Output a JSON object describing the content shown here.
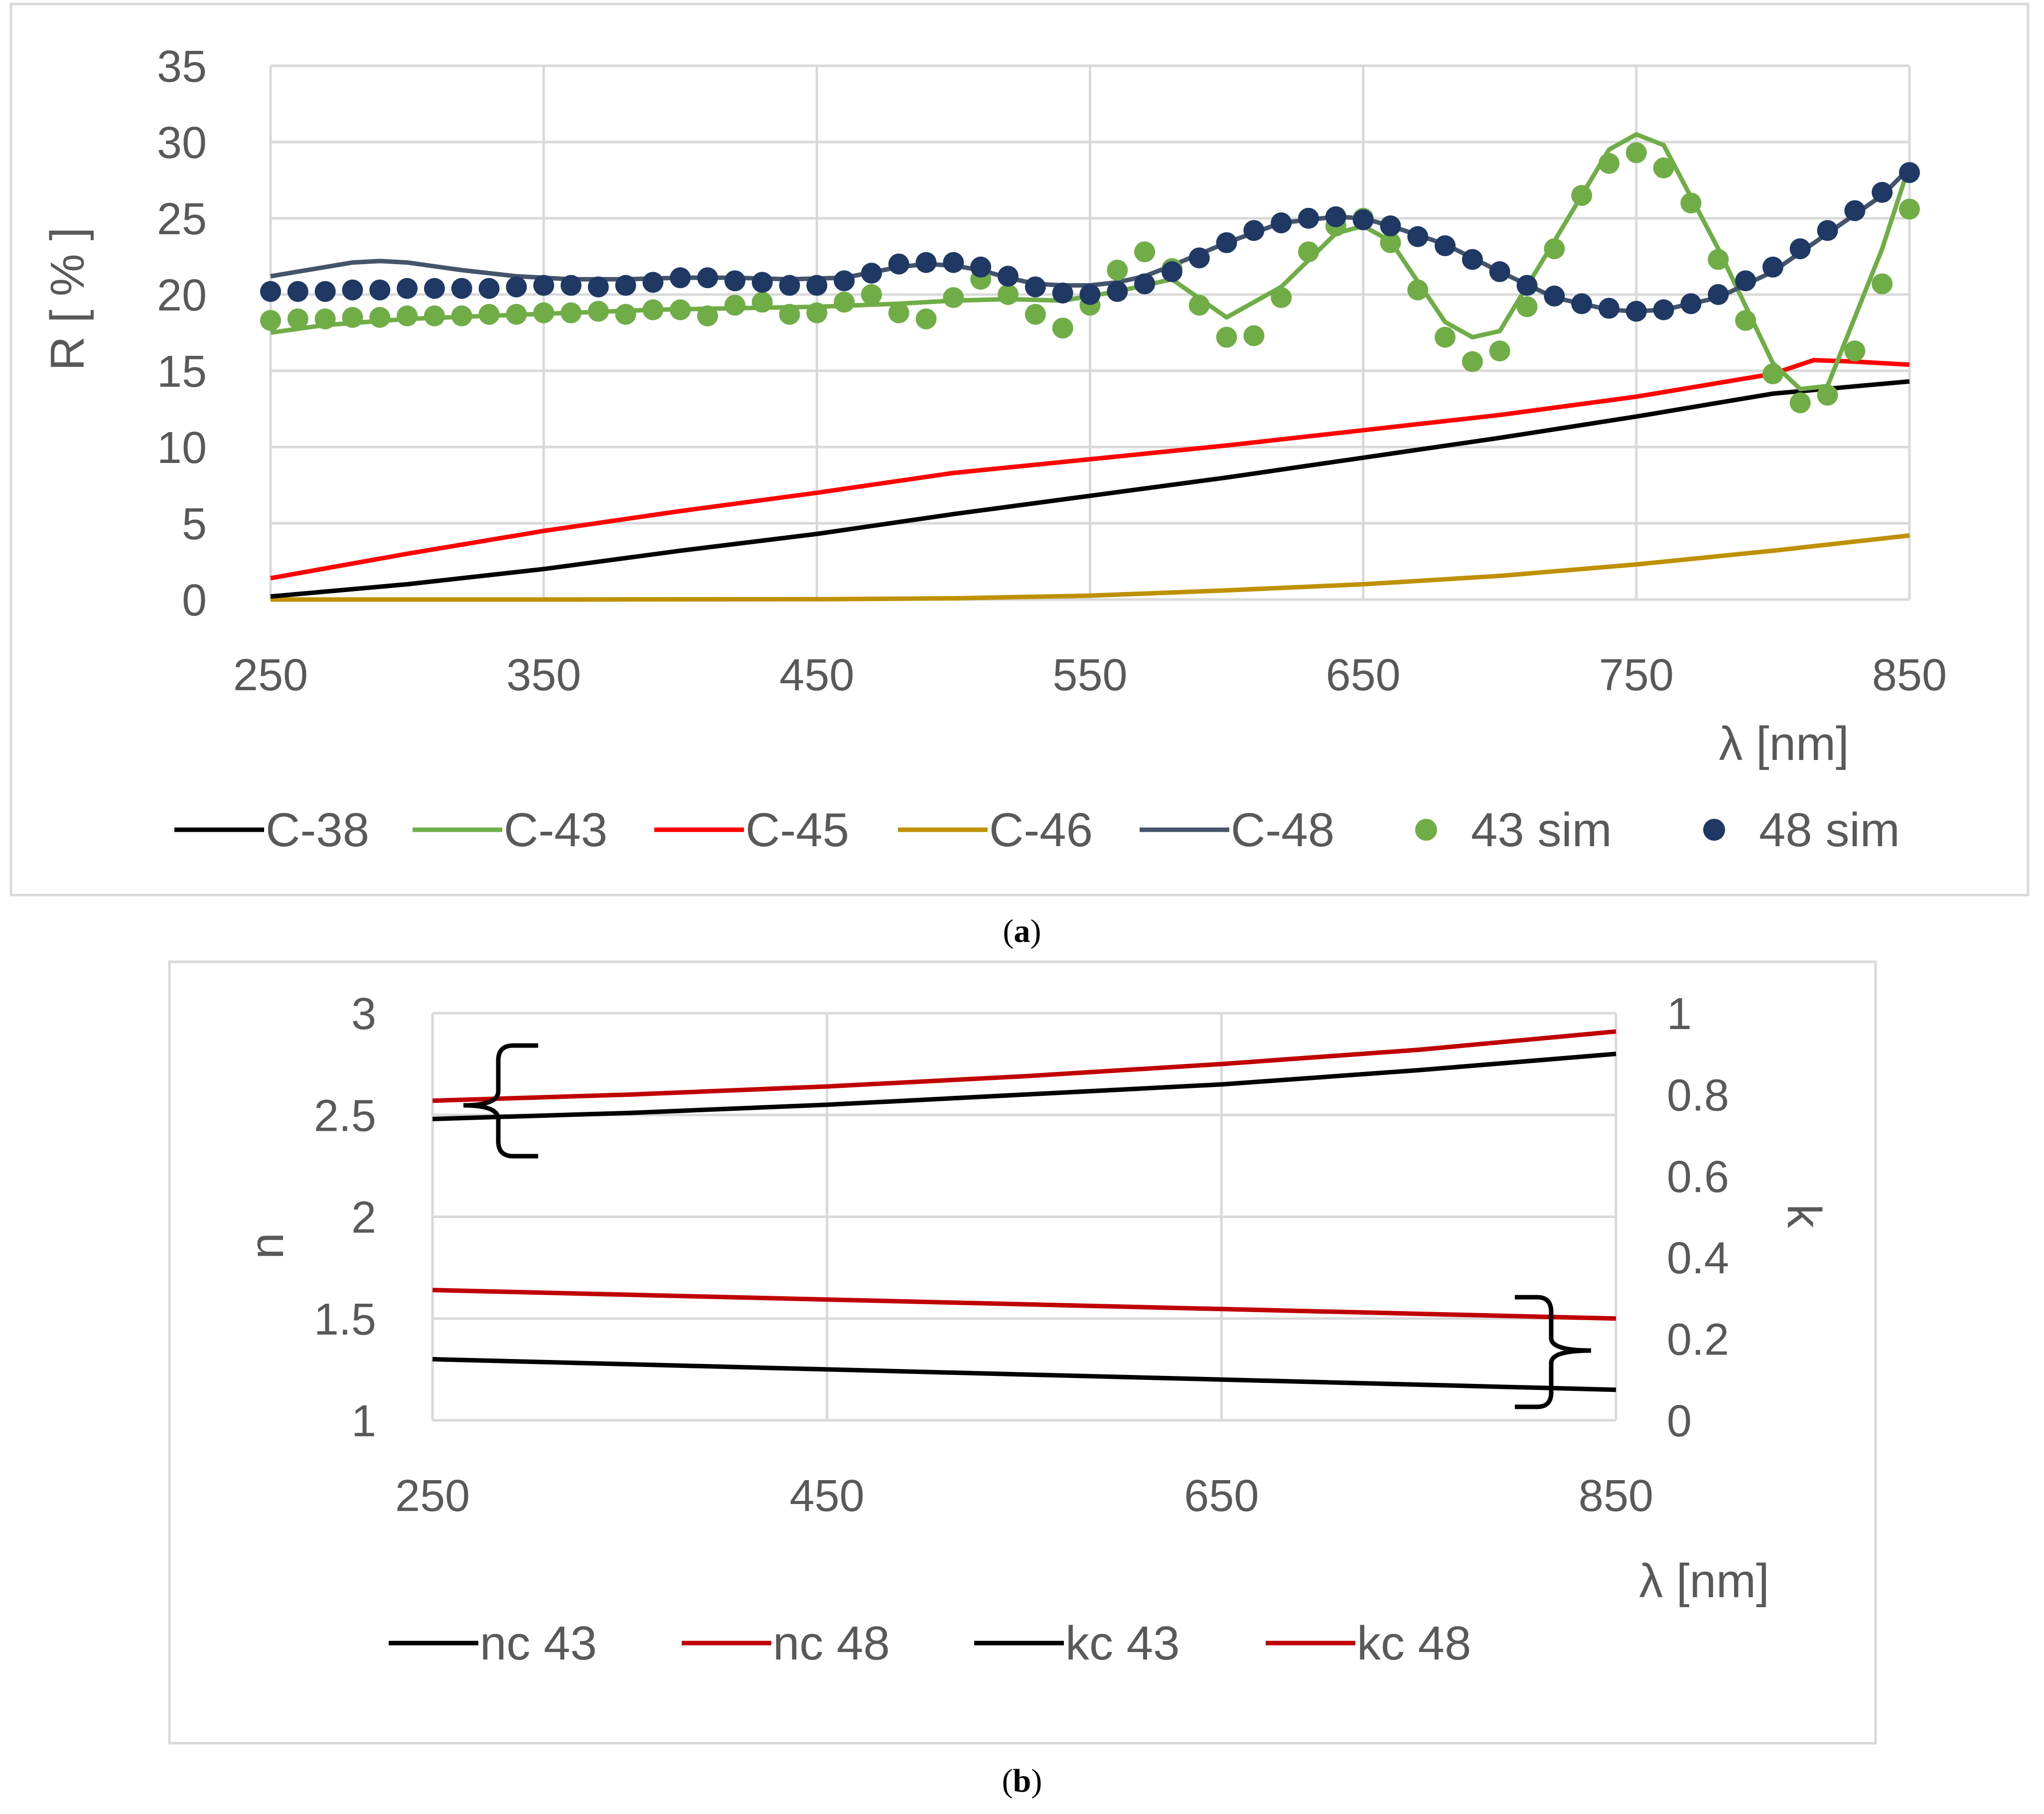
{
  "chart_data": [
    {
      "panel": "a",
      "type": "line",
      "caption": {
        "open": "(",
        "letter": "a",
        "close": ")"
      },
      "xlabel": "λ [nm]",
      "ylabel": "R [ % ]",
      "xlim": [
        250,
        850
      ],
      "ylim": [
        0,
        35
      ],
      "xticks": [
        "250",
        "350",
        "450",
        "550",
        "650",
        "750",
        "850"
      ],
      "yticks": [
        "0",
        "5",
        "10",
        "15",
        "20",
        "25",
        "30",
        "35"
      ],
      "grid": true,
      "legend_position": "bottom",
      "series": [
        {
          "name": "C-38",
          "kind": "line",
          "color": "#000000",
          "x": [
            250,
            300,
            350,
            400,
            450,
            500,
            550,
            600,
            650,
            700,
            750,
            800,
            850
          ],
          "y": [
            0.2,
            1.0,
            2.0,
            3.2,
            4.3,
            5.6,
            6.8,
            8.0,
            9.3,
            10.6,
            12.0,
            13.5,
            14.3
          ]
        },
        {
          "name": "C-43",
          "kind": "line",
          "color": "#70AD47",
          "x": [
            250,
            270,
            300,
            330,
            360,
            390,
            420,
            450,
            480,
            500,
            520,
            540,
            560,
            580,
            600,
            620,
            640,
            650,
            660,
            680,
            690,
            700,
            720,
            740,
            750,
            760,
            780,
            800,
            810,
            820,
            840,
            850
          ],
          "y": [
            17.5,
            18.0,
            18.4,
            18.6,
            18.8,
            19.0,
            19.1,
            19.2,
            19.4,
            19.6,
            19.7,
            19.6,
            20.2,
            21.0,
            18.5,
            20.5,
            24.0,
            24.5,
            23.5,
            18.2,
            17.2,
            17.6,
            23.5,
            29.5,
            30.5,
            29.8,
            23.0,
            15.5,
            13.8,
            14.0,
            23.0,
            28.5
          ]
        },
        {
          "name": "C-45",
          "kind": "line",
          "color": "#FF0000",
          "x": [
            250,
            300,
            350,
            400,
            450,
            500,
            550,
            600,
            650,
            700,
            750,
            800,
            815,
            830,
            850
          ],
          "y": [
            1.4,
            3.0,
            4.5,
            5.8,
            7.0,
            8.3,
            9.2,
            10.1,
            11.1,
            12.1,
            13.3,
            14.8,
            15.7,
            15.6,
            15.4
          ]
        },
        {
          "name": "C-46",
          "kind": "line",
          "color": "#BF9000",
          "x": [
            250,
            350,
            450,
            500,
            550,
            600,
            650,
            700,
            750,
            800,
            850
          ],
          "y": [
            0,
            0,
            0.02,
            0.08,
            0.25,
            0.6,
            1.0,
            1.55,
            2.3,
            3.2,
            4.2
          ]
        },
        {
          "name": "C-48",
          "kind": "line",
          "color": "#44546A",
          "x": [
            250,
            260,
            270,
            280,
            290,
            300,
            320,
            340,
            360,
            380,
            400,
            420,
            440,
            460,
            480,
            490,
            500,
            510,
            520,
            530,
            540,
            550,
            560,
            570,
            580,
            600,
            620,
            640,
            650,
            660,
            680,
            700,
            720,
            740,
            750,
            760,
            780,
            800,
            820,
            840,
            850
          ],
          "y": [
            21.2,
            21.5,
            21.8,
            22.1,
            22.2,
            22.1,
            21.6,
            21.2,
            21.0,
            21.0,
            21.1,
            21.1,
            21.0,
            21.1,
            21.8,
            22.0,
            21.9,
            21.6,
            21.1,
            20.7,
            20.6,
            20.6,
            20.8,
            21.2,
            21.9,
            23.4,
            24.7,
            25.1,
            25.0,
            24.5,
            23.3,
            21.5,
            19.8,
            19.0,
            18.9,
            19.0,
            19.8,
            21.5,
            24.0,
            26.5,
            28.3
          ]
        },
        {
          "name": "43 sim",
          "kind": "scatter",
          "color": "#70AD47",
          "x": [
            250,
            260,
            270,
            280,
            290,
            300,
            310,
            320,
            330,
            340,
            350,
            360,
            370,
            380,
            390,
            400,
            410,
            420,
            430,
            440,
            450,
            460,
            470,
            480,
            490,
            500,
            510,
            520,
            530,
            540,
            550,
            560,
            570,
            580,
            590,
            600,
            610,
            620,
            630,
            640,
            650,
            660,
            670,
            680,
            690,
            700,
            710,
            720,
            730,
            740,
            750,
            760,
            770,
            780,
            790,
            800,
            810,
            820,
            830,
            840,
            850
          ],
          "y": [
            18.3,
            18.4,
            18.4,
            18.5,
            18.5,
            18.6,
            18.6,
            18.6,
            18.7,
            18.7,
            18.8,
            18.8,
            18.9,
            18.7,
            19.0,
            19.0,
            18.6,
            19.3,
            19.5,
            18.7,
            18.8,
            19.5,
            20.0,
            18.8,
            18.4,
            19.8,
            21.0,
            20.0,
            18.7,
            17.8,
            19.3,
            21.6,
            22.8,
            21.7,
            19.3,
            17.2,
            17.3,
            19.8,
            22.8,
            24.5,
            25.0,
            23.4,
            20.3,
            17.2,
            15.6,
            16.3,
            19.2,
            23.0,
            26.5,
            28.6,
            29.3,
            28.3,
            26.0,
            22.3,
            18.3,
            14.8,
            12.9,
            13.4,
            16.3,
            20.7,
            25.6
          ]
        },
        {
          "name": "48 sim",
          "kind": "scatter",
          "color": "#1F3864",
          "x": [
            250,
            260,
            270,
            280,
            290,
            300,
            310,
            320,
            330,
            340,
            350,
            360,
            370,
            380,
            390,
            400,
            410,
            420,
            430,
            440,
            450,
            460,
            470,
            480,
            490,
            500,
            510,
            520,
            530,
            540,
            550,
            560,
            570,
            580,
            590,
            600,
            610,
            620,
            630,
            640,
            650,
            660,
            670,
            680,
            690,
            700,
            710,
            720,
            730,
            740,
            750,
            760,
            770,
            780,
            790,
            800,
            810,
            820,
            830,
            840,
            850
          ],
          "y": [
            20.2,
            20.2,
            20.2,
            20.3,
            20.3,
            20.4,
            20.4,
            20.4,
            20.4,
            20.5,
            20.6,
            20.6,
            20.5,
            20.6,
            20.8,
            21.1,
            21.1,
            20.9,
            20.8,
            20.6,
            20.6,
            20.9,
            21.4,
            22.0,
            22.1,
            22.1,
            21.8,
            21.2,
            20.5,
            20.1,
            20.0,
            20.2,
            20.7,
            21.5,
            22.4,
            23.4,
            24.2,
            24.7,
            25.0,
            25.1,
            24.9,
            24.5,
            23.8,
            23.2,
            22.3,
            21.5,
            20.6,
            19.9,
            19.4,
            19.1,
            18.9,
            19.0,
            19.4,
            20.0,
            20.9,
            21.8,
            23.0,
            24.2,
            25.5,
            26.7,
            28.0
          ]
        }
      ]
    },
    {
      "panel": "b",
      "type": "line",
      "caption": {
        "open": "(",
        "letter": "b",
        "close": ")"
      },
      "xlabel": "λ [nm]",
      "ylabel_left": "n",
      "ylabel_right": "k",
      "xlim": [
        250,
        850
      ],
      "ylim_left": [
        1,
        3
      ],
      "ylim_right": [
        0,
        1
      ],
      "xticks": [
        "250",
        "450",
        "650",
        "850"
      ],
      "yticks_left": [
        "1",
        "1.5",
        "2",
        "2.5",
        "3"
      ],
      "yticks_right": [
        "0",
        "0.2",
        "0.4",
        "0.6",
        "0.8",
        "1"
      ],
      "grid": true,
      "legend_position": "bottom",
      "series": [
        {
          "name": "nc 43",
          "axis": "left",
          "color": "#000000",
          "x": [
            250,
            350,
            450,
            550,
            650,
            750,
            850
          ],
          "y": [
            2.48,
            2.51,
            2.55,
            2.6,
            2.65,
            2.72,
            2.8
          ]
        },
        {
          "name": "nc 48",
          "axis": "left",
          "color": "#C00000",
          "x": [
            250,
            350,
            450,
            550,
            650,
            750,
            850
          ],
          "y": [
            2.57,
            2.6,
            2.64,
            2.69,
            2.75,
            2.82,
            2.91
          ]
        },
        {
          "name": "kc 43",
          "axis": "right",
          "color": "#000000",
          "x": [
            250,
            850
          ],
          "y": [
            0.15,
            0.075
          ]
        },
        {
          "name": "kc 48",
          "axis": "right",
          "color": "#C00000",
          "x": [
            250,
            850
          ],
          "y": [
            0.32,
            0.25
          ]
        }
      ]
    }
  ]
}
